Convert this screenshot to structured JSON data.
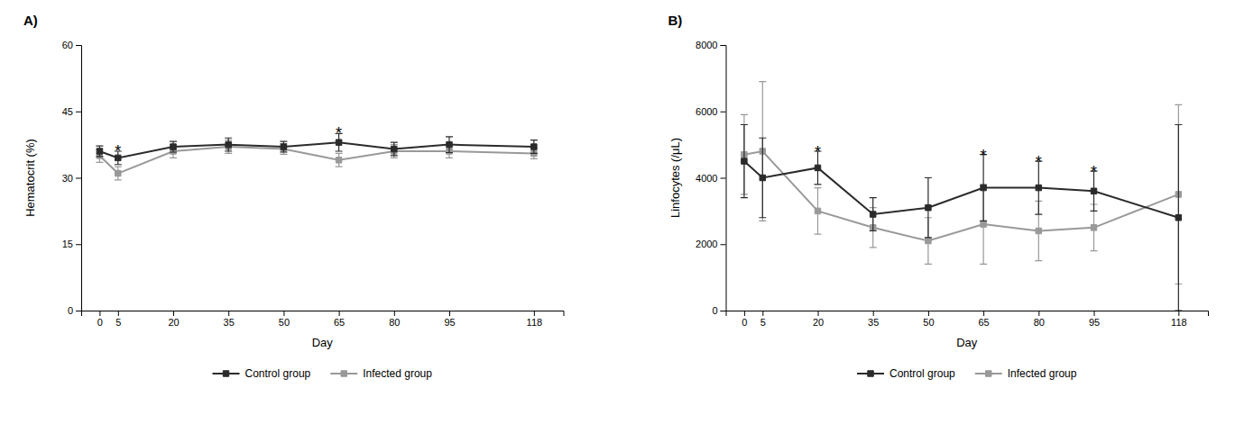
{
  "chart_data": [
    {
      "type": "line",
      "title": "A)",
      "x_label": "Day",
      "y_label": "Hematocrit (%)",
      "x": [
        0,
        5,
        20,
        35,
        50,
        65,
        80,
        95,
        118
      ],
      "xlim": [
        -5,
        126
      ],
      "xticks": [
        0,
        5,
        20,
        35,
        50,
        65,
        80,
        95,
        118
      ],
      "ylim": [
        0,
        60
      ],
      "yticks": [
        0,
        15,
        30,
        45,
        60
      ],
      "grid": false,
      "legend": "bottom",
      "series": [
        {
          "name": "Control group",
          "color": "#2b2b2b",
          "marker": "square",
          "line_style": "solid",
          "values": [
            36.0,
            34.5,
            37.0,
            37.5,
            37.0,
            38.0,
            36.5,
            37.5,
            37.0
          ],
          "errors": [
            1.2,
            1.5,
            1.2,
            1.5,
            1.2,
            2.0,
            1.5,
            1.8,
            1.5
          ]
        },
        {
          "name": "Infected group",
          "color": "#999999",
          "marker": "square",
          "line_style": "solid",
          "values": [
            35.0,
            31.0,
            36.0,
            37.0,
            36.5,
            34.0,
            36.0,
            36.0,
            35.5
          ],
          "errors": [
            1.5,
            1.5,
            1.5,
            1.5,
            1.2,
            1.5,
            1.5,
            1.5,
            1.2
          ]
        }
      ],
      "annotations": [
        {
          "text": "*",
          "x": 5,
          "y": 36.8
        },
        {
          "text": "*",
          "x": 65,
          "y": 40.8
        }
      ]
    },
    {
      "type": "line",
      "title": "B)",
      "x_label": "Day",
      "y_label": "Linfocytes (/μL)",
      "x": [
        0,
        5,
        20,
        35,
        50,
        65,
        80,
        95,
        118
      ],
      "xlim": [
        -5,
        126
      ],
      "xticks": [
        0,
        5,
        20,
        35,
        50,
        65,
        80,
        95,
        118
      ],
      "ylim": [
        0,
        8000
      ],
      "yticks": [
        0,
        2000,
        4000,
        6000,
        8000
      ],
      "grid": false,
      "legend": "bottom",
      "series": [
        {
          "name": "Control group",
          "color": "#2b2b2b",
          "marker": "square",
          "line_style": "solid",
          "values": [
            4500,
            4000,
            4300,
            2900,
            3100,
            3700,
            3700,
            3600,
            2800
          ],
          "errors": [
            1100,
            1200,
            500,
            500,
            900,
            1000,
            800,
            600,
            2800
          ]
        },
        {
          "name": "Infected group",
          "color": "#999999",
          "marker": "square",
          "line_style": "solid",
          "values": [
            4700,
            4800,
            3000,
            2500,
            2100,
            2600,
            2400,
            2500,
            3500
          ],
          "errors": [
            1200,
            2100,
            700,
            600,
            700,
            1200,
            900,
            700,
            2700
          ]
        }
      ],
      "annotations": [
        {
          "text": "*",
          "x": 20,
          "y": 4880
        },
        {
          "text": "*",
          "x": 65,
          "y": 4780
        },
        {
          "text": "*",
          "x": 80,
          "y": 4580
        },
        {
          "text": "*",
          "x": 95,
          "y": 4280
        }
      ]
    }
  ]
}
